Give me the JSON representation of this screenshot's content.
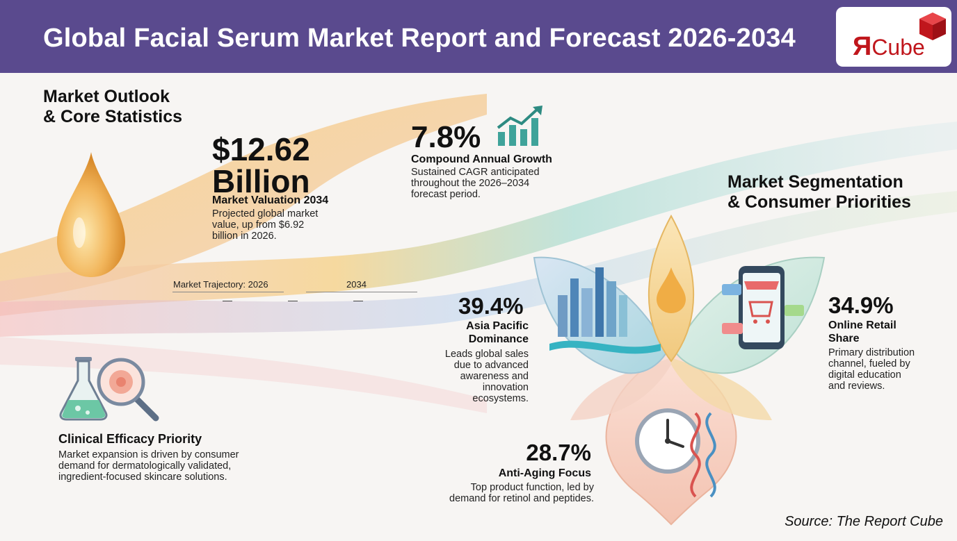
{
  "header": {
    "title": "Global Facial Serum Market Report and Forecast 2026-2034",
    "background_color": "#5a4a8e"
  },
  "logo": {
    "letter": "Я",
    "text": "Cube",
    "color": "#c0161c",
    "cube_color": "#d8232a"
  },
  "market_outlook": {
    "heading_line1": "Market Outlook",
    "heading_line2": "& Core Statistics",
    "valuation": {
      "value_line1": "$12.62",
      "value_line2": "Billion",
      "label": "Market Valuation 2034",
      "desc_line1": "Projected global market",
      "desc_line2": "value, up from $6.92",
      "desc_line3": "billion in 2026."
    },
    "cagr": {
      "value": "7.8%",
      "label": "Compound Annual Growth",
      "desc_line1": "Sustained CAGR anticipated",
      "desc_line2": "throughout the 2026–2034",
      "desc_line3": "forecast period."
    },
    "trajectory": {
      "label": "Market Trajectory: 2026",
      "year_end": "2034",
      "dash": "—"
    }
  },
  "clinical": {
    "title": "Clinical Efficacy Priority",
    "desc_line1": "Market expansion is driven by consumer",
    "desc_line2": "demand for dermatologically validated,",
    "desc_line3": "ingredient-focused skincare solutions."
  },
  "segmentation": {
    "heading_line1": "Market Segmentation",
    "heading_line2": "& Consumer Priorities",
    "asia": {
      "value": "39.4%",
      "label_line1": "Asia Pacific",
      "label_line2": "Dominance",
      "desc_line1": "Leads global sales",
      "desc_line2": "due to advanced",
      "desc_line3": "awareness and",
      "desc_line4": "innovation",
      "desc_line5": "ecosystems."
    },
    "online": {
      "value": "34.9%",
      "label_line1": "Online Retail",
      "label_line2": "Share",
      "desc_line1": "Primary distribution",
      "desc_line2": "channel, fueled by",
      "desc_line3": "digital education",
      "desc_line4": "and reviews."
    },
    "antiaging": {
      "value": "28.7%",
      "label": "Anti-Aging Focus",
      "desc_line1": "Top product function, led by",
      "desc_line2": "demand for retinol and peptides."
    }
  },
  "source": "Source: The Report Cube",
  "icons": [
    "serum-drop-icon",
    "growth-chart-icon",
    "flask-icon",
    "magnifier-icon",
    "city-skyline-icon",
    "phone-cart-icon",
    "clock-icon",
    "dna-icon"
  ]
}
